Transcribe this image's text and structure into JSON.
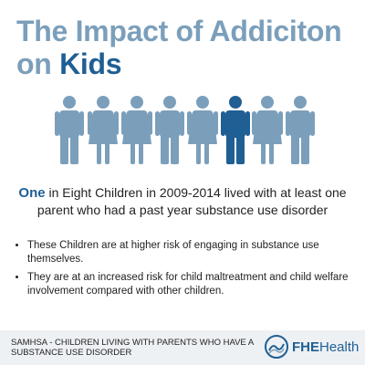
{
  "title": {
    "line1": "The Impact of Addiciton",
    "line2": "on",
    "highlight": "Kids"
  },
  "stat": {
    "highlight": "One",
    "text": "in Eight Children in 2009-2014 lived with at least one parent who had a past year substance use disorder"
  },
  "bullets": [
    "These Children are at higher risk of engaging in substance use themselves.",
    "They are at an increased risk for child maltreatment and child welfare involvement compared with other children."
  ],
  "source": "SAMHSA - CHILDREN LIVING WITH PARENTS WHO HAVE A SUBSTANCE USE DISORDER",
  "logo": {
    "bold": "FHE",
    "text": "Health"
  }
}
